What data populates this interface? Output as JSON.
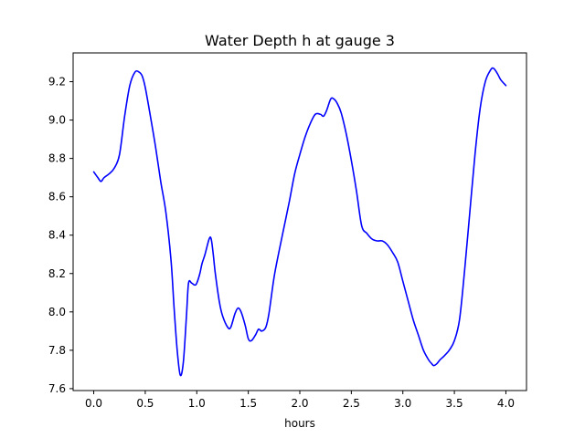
{
  "chart_data": {
    "type": "line",
    "title": "Water Depth h at gauge 3",
    "xlabel": "hours",
    "ylabel": "",
    "xlim": [
      -0.2,
      4.2
    ],
    "ylim": [
      7.59,
      9.35
    ],
    "xticks": [
      0.0,
      0.5,
      1.0,
      1.5,
      2.0,
      2.5,
      3.0,
      3.5,
      4.0
    ],
    "xtick_labels": [
      "0.0",
      "0.5",
      "1.0",
      "1.5",
      "2.0",
      "2.5",
      "3.0",
      "3.5",
      "4.0"
    ],
    "yticks": [
      7.6,
      7.8,
      8.0,
      8.2,
      8.4,
      8.6,
      8.8,
      9.0,
      9.2
    ],
    "ytick_labels": [
      "7.6",
      "7.8",
      "8.0",
      "8.2",
      "8.4",
      "8.6",
      "8.8",
      "9.0",
      "9.2"
    ],
    "grid": false,
    "series": [
      {
        "color": "#0000ff",
        "x": [
          0.0,
          0.04,
          0.07,
          0.1,
          0.15,
          0.2,
          0.25,
          0.3,
          0.35,
          0.4,
          0.44,
          0.47,
          0.5,
          0.55,
          0.6,
          0.65,
          0.7,
          0.75,
          0.78,
          0.81,
          0.84,
          0.87,
          0.9,
          0.92,
          0.95,
          0.98,
          1.0,
          1.03,
          1.05,
          1.08,
          1.12,
          1.14,
          1.16,
          1.18,
          1.22,
          1.25,
          1.3,
          1.33,
          1.37,
          1.4,
          1.43,
          1.47,
          1.5,
          1.53,
          1.57,
          1.6,
          1.63,
          1.67,
          1.7,
          1.75,
          1.8,
          1.85,
          1.9,
          1.95,
          2.0,
          2.05,
          2.1,
          2.15,
          2.2,
          2.23,
          2.26,
          2.3,
          2.33,
          2.36,
          2.4,
          2.45,
          2.5,
          2.55,
          2.6,
          2.65,
          2.7,
          2.75,
          2.8,
          2.85,
          2.9,
          2.95,
          3.0,
          3.05,
          3.1,
          3.15,
          3.2,
          3.25,
          3.28,
          3.3,
          3.33,
          3.36,
          3.4,
          3.45,
          3.5,
          3.55,
          3.6,
          3.65,
          3.7,
          3.75,
          3.8,
          3.85,
          3.88,
          3.92,
          3.95,
          4.0
        ],
        "values": [
          8.73,
          8.7,
          8.68,
          8.7,
          8.72,
          8.75,
          8.82,
          9.02,
          9.18,
          9.25,
          9.25,
          9.23,
          9.17,
          9.02,
          8.86,
          8.68,
          8.52,
          8.27,
          8.02,
          7.8,
          7.67,
          7.74,
          7.98,
          8.15,
          8.15,
          8.14,
          8.15,
          8.2,
          8.25,
          8.3,
          8.38,
          8.38,
          8.3,
          8.2,
          8.05,
          7.98,
          7.92,
          7.92,
          7.99,
          8.02,
          8.0,
          7.93,
          7.86,
          7.85,
          7.88,
          7.91,
          7.9,
          7.92,
          7.99,
          8.18,
          8.32,
          8.45,
          8.58,
          8.72,
          8.82,
          8.91,
          8.98,
          9.03,
          9.03,
          9.02,
          9.05,
          9.11,
          9.11,
          9.09,
          9.04,
          8.93,
          8.79,
          8.63,
          8.45,
          8.41,
          8.38,
          8.37,
          8.37,
          8.35,
          8.31,
          8.26,
          8.16,
          8.06,
          7.96,
          7.88,
          7.8,
          7.75,
          7.73,
          7.72,
          7.73,
          7.75,
          7.77,
          7.8,
          7.85,
          7.96,
          8.22,
          8.52,
          8.82,
          9.06,
          9.2,
          9.26,
          9.27,
          9.24,
          9.21,
          9.18
        ]
      }
    ]
  }
}
